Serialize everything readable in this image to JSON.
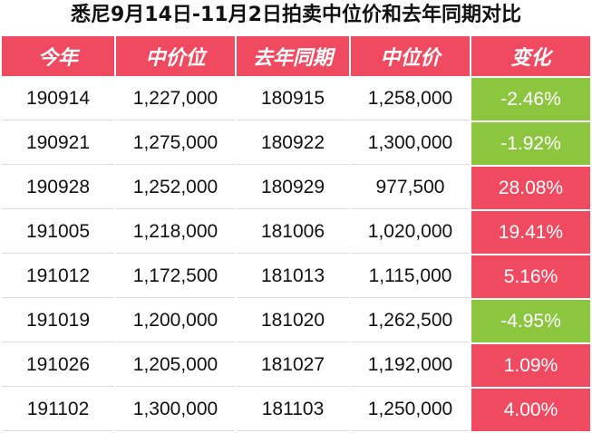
{
  "title": "悉尼9月14日-11月2日拍卖中位价和去年同期对比",
  "colors": {
    "header": "#f04a60",
    "increase": "#f04a60",
    "decrease": "#8cc63f"
  },
  "headers": [
    "今年",
    "中价位",
    "去年同期",
    "中位价",
    "变化"
  ],
  "rows": [
    {
      "this_year": "190914",
      "median": "1,227,000",
      "last_year": "180915",
      "last_median": "1,258,000",
      "change": "-2.46%",
      "direction": "down"
    },
    {
      "this_year": "190921",
      "median": "1,275,000",
      "last_year": "180922",
      "last_median": "1,300,000",
      "change": "-1.92%",
      "direction": "down"
    },
    {
      "this_year": "190928",
      "median": "1,252,000",
      "last_year": "180929",
      "last_median": "977,500",
      "change": "28.08%",
      "direction": "up"
    },
    {
      "this_year": "191005",
      "median": "1,218,000",
      "last_year": "181006",
      "last_median": "1,020,000",
      "change": "19.41%",
      "direction": "up"
    },
    {
      "this_year": "191012",
      "median": "1,172,500",
      "last_year": "181013",
      "last_median": "1,115,000",
      "change": "5.16%",
      "direction": "up"
    },
    {
      "this_year": "191019",
      "median": "1,200,000",
      "last_year": "181020",
      "last_median": "1,262,500",
      "change": "-4.95%",
      "direction": "down"
    },
    {
      "this_year": "191026",
      "median": "1,205,000",
      "last_year": "181027",
      "last_median": "1,192,000",
      "change": "1.09%",
      "direction": "up"
    },
    {
      "this_year": "191102",
      "median": "1,300,000",
      "last_year": "181103",
      "last_median": "1,250,000",
      "change": "4.00%",
      "direction": "up"
    }
  ]
}
